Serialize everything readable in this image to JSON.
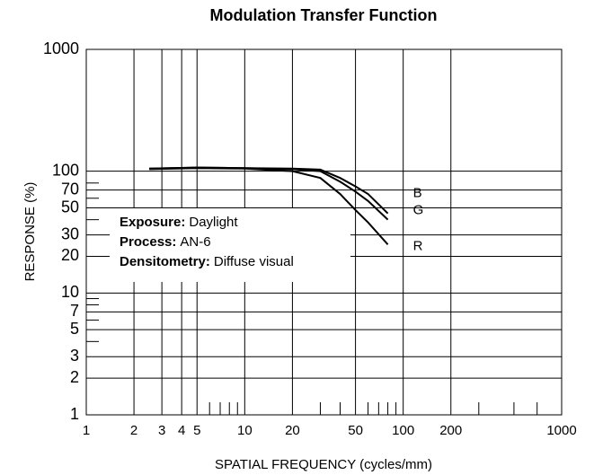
{
  "chart_data": {
    "type": "line",
    "title": "Modulation Transfer Function",
    "x_label": "SPATIAL FREQUENCY (cycles/mm)",
    "y_label": "RESPONSE (%)",
    "log_x": true,
    "log_y": true,
    "grid": true,
    "xlim": [
      1,
      1000
    ],
    "ylim": [
      1,
      1000
    ],
    "xticks": [
      1,
      2,
      3,
      4,
      5,
      10,
      20,
      50,
      100,
      200,
      1000
    ],
    "yticks": [
      1,
      2,
      3,
      5,
      7,
      10,
      20,
      30,
      50,
      70,
      100,
      1000
    ],
    "x_minor_ticks": [
      6,
      7,
      8,
      9,
      30,
      40,
      60,
      70,
      80,
      90,
      300,
      500,
      700
    ],
    "y_minor_ticks": [
      4,
      6,
      8,
      9,
      40,
      60,
      80
    ],
    "x": [
      2.5,
      5,
      10,
      20,
      30,
      40,
      50,
      60,
      80
    ],
    "series": [
      {
        "name": "B",
        "color": "#000000",
        "values": [
          105,
          107,
          106,
          105,
          103,
          88,
          75,
          65,
          45
        ]
      },
      {
        "name": "G",
        "color": "#000000",
        "values": [
          105,
          107,
          106,
          104,
          100,
          82,
          68,
          57,
          40
        ]
      },
      {
        "name": "R",
        "color": "#000000",
        "values": [
          104,
          106,
          105,
          100,
          88,
          65,
          48,
          38,
          25
        ]
      }
    ],
    "annotations": [
      {
        "label": "Exposure:",
        "text": "Daylight"
      },
      {
        "label": "Process:",
        "text": "AN-6"
      },
      {
        "label": "Densitometry:",
        "text": "Diffuse visual"
      }
    ]
  }
}
